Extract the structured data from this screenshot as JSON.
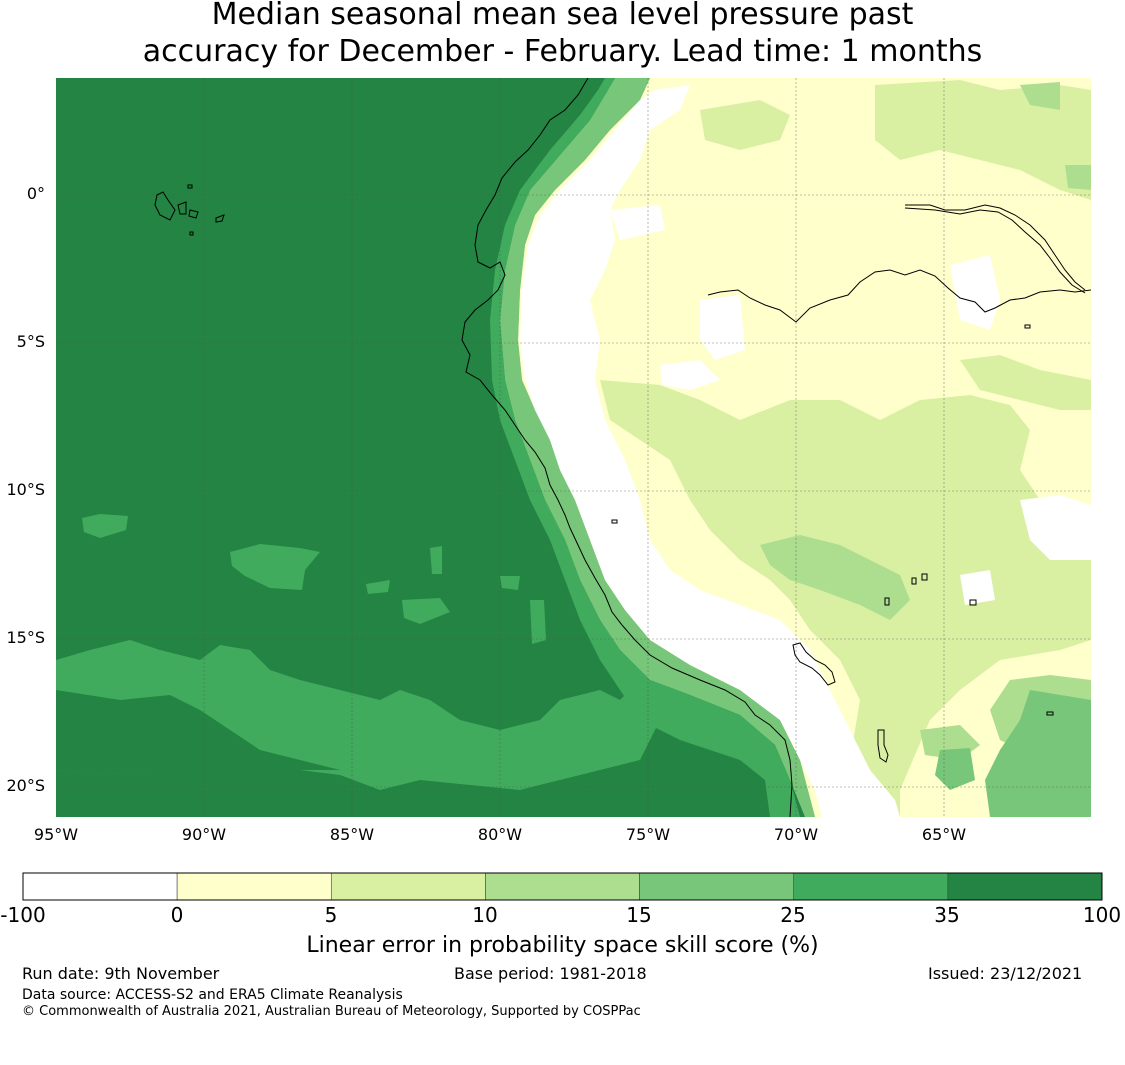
{
  "title": {
    "line1": "Median seasonal mean sea level pressure past",
    "line2": "accuracy for December - February. Lead time: 1 months"
  },
  "map": {
    "lat_labels": [
      "0°",
      "5°S",
      "10°S",
      "15°S",
      "20°S"
    ],
    "lon_labels": [
      "95°W",
      "90°W",
      "85°W",
      "80°W",
      "75°W",
      "70°W",
      "65°W"
    ],
    "lat_values": [
      0,
      -5,
      -10,
      -15,
      -20
    ],
    "lon_values": [
      -95,
      -90,
      -85,
      -80,
      -75,
      -70,
      -65
    ],
    "extent": {
      "lon_min": -95,
      "lon_max": -60,
      "lat_min": -21,
      "lat_max": 4
    }
  },
  "colorbar": {
    "ticks": [
      "-100",
      "0",
      "5",
      "10",
      "15",
      "25",
      "35",
      "100"
    ],
    "colors": [
      "#ffffff",
      "#ffffcc",
      "#d9f0a3",
      "#addd8e",
      "#78c679",
      "#41ab5d",
      "#238443"
    ],
    "label": "Linear error in probability space skill score (%)"
  },
  "footer": {
    "run_date": "Run date: 9th November",
    "base_period": "Base period: 1981-2018",
    "issued": "Issued: 23/12/2021",
    "data_source": "Data source: ACCESS-S2 and ERA5 Climate Reanalysis",
    "copyright": "© Commonwealth of Australia 2021, Australian Bureau of Meteorology, Supported by COSPPac"
  }
}
